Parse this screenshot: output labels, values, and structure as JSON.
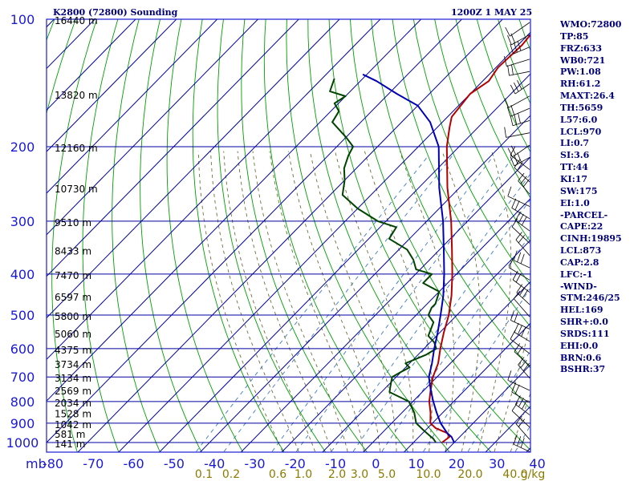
{
  "chart_data": {
    "type": "line",
    "title": "K2800 (72800) Sounding",
    "datetime": "1200Z  1 MAY 25",
    "x_axis_prefix": "mb",
    "pressure_ticks": [
      100,
      200,
      300,
      400,
      500,
      600,
      700,
      800,
      900,
      1000
    ],
    "pressure_range": [
      100,
      1000
    ],
    "y_scale": "log",
    "temperature_ticks": [
      -80,
      -70,
      -60,
      -50,
      -40,
      -30,
      -20,
      -10,
      0,
      10,
      20,
      30,
      40
    ],
    "temperature_range_at_1000mb": [
      -80,
      40
    ],
    "mixing_ratio_labels": [
      "0.1",
      "0.2",
      "0.6",
      "1.0",
      "2.0",
      "3.0",
      "5.0",
      "10.0",
      "20.0",
      "40.0",
      "g/kg"
    ],
    "height_labels": [
      {
        "p": 100,
        "label": "16440 m"
      },
      {
        "p": 150,
        "label": "13820 m"
      },
      {
        "p": 200,
        "label": "12160 m"
      },
      {
        "p": 250,
        "label": "10730 m"
      },
      {
        "p": 300,
        "label": "9510 m"
      },
      {
        "p": 350,
        "label": "8433 m"
      },
      {
        "p": 400,
        "label": "7470 m"
      },
      {
        "p": 450,
        "label": "6597 m"
      },
      {
        "p": 500,
        "label": "5800 m"
      },
      {
        "p": 550,
        "label": "5060 m"
      },
      {
        "p": 600,
        "label": "4375 m"
      },
      {
        "p": 650,
        "label": "3734 m"
      },
      {
        "p": 700,
        "label": "3134 m"
      },
      {
        "p": 750,
        "label": "2569 m"
      },
      {
        "p": 800,
        "label": "2034 m"
      },
      {
        "p": 850,
        "label": "1528 m"
      },
      {
        "p": 900,
        "label": "1042 m"
      },
      {
        "p": 950,
        "label": "581 m"
      },
      {
        "p": 1000,
        "label": "141 m"
      }
    ],
    "series": [
      {
        "role": "temperature",
        "color": "#b40000",
        "points": [
          [
            1000,
            17
          ],
          [
            970,
            17.5
          ],
          [
            950,
            16
          ],
          [
            925,
            12
          ],
          [
            900,
            9.5
          ],
          [
            850,
            7
          ],
          [
            800,
            4
          ],
          [
            750,
            1.5
          ],
          [
            700,
            -1
          ],
          [
            650,
            -3
          ],
          [
            600,
            -6
          ],
          [
            550,
            -9
          ],
          [
            500,
            -12
          ],
          [
            450,
            -16
          ],
          [
            400,
            -21
          ],
          [
            350,
            -27
          ],
          [
            300,
            -34
          ],
          [
            250,
            -43
          ],
          [
            200,
            -53
          ],
          [
            180,
            -57
          ],
          [
            170,
            -59
          ],
          [
            150,
            -60
          ],
          [
            140,
            -58.5
          ],
          [
            130,
            -59.5
          ],
          [
            115,
            -59
          ],
          [
            100,
            -60
          ]
        ]
      },
      {
        "role": "dewpoint",
        "color": "#004400",
        "points": [
          [
            1000,
            15.5
          ],
          [
            980,
            14
          ],
          [
            960,
            12
          ],
          [
            950,
            11
          ],
          [
            930,
            9
          ],
          [
            900,
            6
          ],
          [
            850,
            3
          ],
          [
            800,
            -1
          ],
          [
            760,
            -8
          ],
          [
            740,
            -9
          ],
          [
            720,
            -10
          ],
          [
            700,
            -11
          ],
          [
            680,
            -10
          ],
          [
            665,
            -9
          ],
          [
            650,
            -11
          ],
          [
            620,
            -8
          ],
          [
            600,
            -7
          ],
          [
            580,
            -9
          ],
          [
            560,
            -12
          ],
          [
            520,
            -14
          ],
          [
            500,
            -17
          ],
          [
            480,
            -18
          ],
          [
            470,
            -18
          ],
          [
            440,
            -20
          ],
          [
            420,
            -26
          ],
          [
            400,
            -26
          ],
          [
            390,
            -31
          ],
          [
            370,
            -34
          ],
          [
            350,
            -38
          ],
          [
            330,
            -45
          ],
          [
            310,
            -46
          ],
          [
            300,
            -52
          ],
          [
            280,
            -60
          ],
          [
            260,
            -67
          ],
          [
            240,
            -70
          ],
          [
            225,
            -73
          ],
          [
            210,
            -75
          ],
          [
            200,
            -76
          ],
          [
            190,
            -80
          ],
          [
            175,
            -87
          ],
          [
            165,
            -88
          ],
          [
            158,
            -91
          ],
          [
            152,
            -90
          ],
          [
            148,
            -95
          ],
          [
            138,
            -97
          ]
        ]
      },
      {
        "role": "parcel",
        "color": "#0000b4",
        "points": [
          [
            1000,
            20
          ],
          [
            970,
            18
          ],
          [
            950,
            16
          ],
          [
            900,
            12
          ],
          [
            850,
            8.5
          ],
          [
            800,
            5
          ],
          [
            750,
            1.5
          ],
          [
            700,
            -2
          ],
          [
            650,
            -4.5
          ],
          [
            600,
            -7.5
          ],
          [
            550,
            -10.5
          ],
          [
            500,
            -14
          ],
          [
            450,
            -18
          ],
          [
            400,
            -23
          ],
          [
            350,
            -29
          ],
          [
            300,
            -36
          ],
          [
            250,
            -45
          ],
          [
            200,
            -55
          ],
          [
            175,
            -63
          ],
          [
            160,
            -70
          ],
          [
            150,
            -78
          ],
          [
            140,
            -86
          ],
          [
            135,
            -91
          ]
        ]
      }
    ]
  },
  "indices": [
    "WMO:72800",
    "TP:85",
    "FRZ:633",
    "WB0:721",
    "PW:1.08",
    "RH:61.2",
    "MAXT:26.4",
    "TH:5659",
    "L57:6.0",
    "LCL:970",
    "LI:0.7",
    "SI:3.6",
    "TT:44",
    "KI:17",
    "SW:175",
    "EI:1.0",
    "-PARCEL-",
    "CAPE:22",
    "CINH:19895",
    "LCL:873",
    "CAP:2.8",
    "LFC:-1",
    "-WIND-",
    "STM:246/25",
    "HEL:169",
    "SHR+:0.0",
    "SRDS:111",
    "EHI:0.0",
    "BRN:0.6",
    "BSHR:37"
  ],
  "colors": {
    "frame": "#1a1ad6",
    "grid": "#0000a0",
    "dry_adiabats": "#00a000",
    "moist_adiabats": "#6e6e3c",
    "mixing_ratio": "#3c78c8",
    "temperature": "#b40000",
    "dewpoint": "#004400",
    "parcel": "#0000b4",
    "wind_barbs": "#000000"
  }
}
